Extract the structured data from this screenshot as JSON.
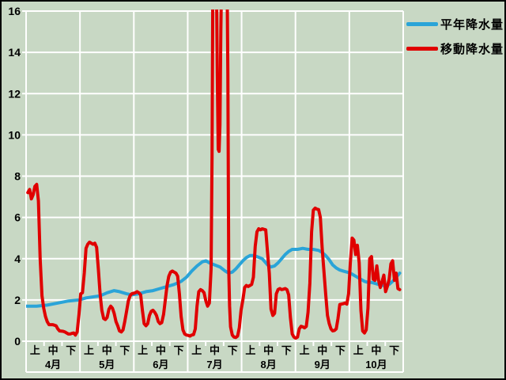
{
  "legend": {
    "series1": "平年降水量",
    "series2": "移動降水量"
  },
  "colors": {
    "background": "#c8d8c4",
    "grid": "#ffffff",
    "normal_line": "#2aa4d8",
    "moving_line": "#e00000",
    "text": "#000000",
    "border": "#000000"
  },
  "chart_data": {
    "type": "line",
    "title": "",
    "grid": true,
    "legend_position": "top-right",
    "x_axis": {
      "months": [
        "4月",
        "5月",
        "6月",
        "7月",
        "8月",
        "9月",
        "10月"
      ],
      "periods": [
        "上",
        "中",
        "下"
      ],
      "x_domain_days": [
        0,
        214
      ]
    },
    "y_axis": {
      "ticks": [
        0,
        2,
        4,
        6,
        8,
        10,
        12,
        14,
        16
      ],
      "range": [
        0,
        16
      ]
    },
    "clip_max": 16,
    "series": [
      {
        "name": "平年降水量",
        "color": "#2aa4d8",
        "points": [
          [
            0,
            1.7
          ],
          [
            6,
            1.7
          ],
          [
            12,
            1.75
          ],
          [
            18,
            1.85
          ],
          [
            24,
            1.95
          ],
          [
            30,
            2.0
          ],
          [
            34,
            2.1
          ],
          [
            38,
            2.15
          ],
          [
            42,
            2.2
          ],
          [
            46,
            2.35
          ],
          [
            50,
            2.45
          ],
          [
            53,
            2.4
          ],
          [
            57,
            2.3
          ],
          [
            60,
            2.25
          ],
          [
            64,
            2.3
          ],
          [
            68,
            2.4
          ],
          [
            72,
            2.45
          ],
          [
            76,
            2.55
          ],
          [
            80,
            2.65
          ],
          [
            84,
            2.75
          ],
          [
            88,
            2.9
          ],
          [
            91,
            3.1
          ],
          [
            94,
            3.4
          ],
          [
            97,
            3.65
          ],
          [
            100,
            3.85
          ],
          [
            102,
            3.9
          ],
          [
            104,
            3.8
          ],
          [
            107,
            3.7
          ],
          [
            110,
            3.6
          ],
          [
            113,
            3.4
          ],
          [
            115,
            3.3
          ],
          [
            117,
            3.35
          ],
          [
            119,
            3.5
          ],
          [
            121,
            3.7
          ],
          [
            123,
            3.9
          ],
          [
            125,
            4.05
          ],
          [
            127,
            4.15
          ],
          [
            129,
            4.15
          ],
          [
            131,
            4.1
          ],
          [
            134,
            4.0
          ],
          [
            137,
            3.7
          ],
          [
            139,
            3.6
          ],
          [
            141,
            3.65
          ],
          [
            143,
            3.8
          ],
          [
            145,
            4.0
          ],
          [
            147,
            4.2
          ],
          [
            149,
            4.35
          ],
          [
            151,
            4.45
          ],
          [
            154,
            4.45
          ],
          [
            157,
            4.5
          ],
          [
            160,
            4.45
          ],
          [
            163,
            4.45
          ],
          [
            166,
            4.4
          ],
          [
            168,
            4.3
          ],
          [
            170,
            4.15
          ],
          [
            172,
            3.95
          ],
          [
            174,
            3.7
          ],
          [
            176,
            3.55
          ],
          [
            178,
            3.45
          ],
          [
            180,
            3.4
          ],
          [
            182,
            3.35
          ],
          [
            184,
            3.3
          ],
          [
            186,
            3.2
          ],
          [
            188,
            3.1
          ],
          [
            190,
            3.0
          ],
          [
            192,
            2.9
          ],
          [
            194,
            2.85
          ],
          [
            196,
            2.85
          ],
          [
            198,
            2.8
          ],
          [
            200,
            2.75
          ],
          [
            202,
            2.7
          ],
          [
            204,
            2.7
          ],
          [
            206,
            2.75
          ],
          [
            208,
            2.9
          ],
          [
            210,
            3.1
          ],
          [
            212,
            3.3
          ]
        ]
      },
      {
        "name": "移動降水量",
        "color": "#e00000",
        "points": [
          [
            1,
            7.2
          ],
          [
            2,
            7.35
          ],
          [
            3,
            6.9
          ],
          [
            4,
            7.1
          ],
          [
            5,
            7.5
          ],
          [
            6,
            7.6
          ],
          [
            7,
            6.8
          ],
          [
            8,
            4.0
          ],
          [
            9,
            2.2
          ],
          [
            10,
            1.6
          ],
          [
            11,
            1.2
          ],
          [
            12,
            0.95
          ],
          [
            13,
            0.8
          ],
          [
            15,
            0.8
          ],
          [
            16,
            0.78
          ],
          [
            17,
            0.75
          ],
          [
            18,
            0.6
          ],
          [
            19,
            0.5
          ],
          [
            21,
            0.48
          ],
          [
            22,
            0.45
          ],
          [
            23,
            0.4
          ],
          [
            24,
            0.35
          ],
          [
            25,
            0.35
          ],
          [
            26,
            0.38
          ],
          [
            27,
            0.4
          ],
          [
            28,
            0.3
          ],
          [
            29,
            0.45
          ],
          [
            30,
            1.3
          ],
          [
            31,
            2.3
          ],
          [
            32,
            2.35
          ],
          [
            33,
            3.3
          ],
          [
            34,
            4.5
          ],
          [
            35,
            4.7
          ],
          [
            36,
            4.8
          ],
          [
            37,
            4.75
          ],
          [
            38,
            4.7
          ],
          [
            39,
            4.75
          ],
          [
            40,
            4.55
          ],
          [
            41,
            3.5
          ],
          [
            42,
            2.3
          ],
          [
            43,
            1.5
          ],
          [
            44,
            1.1
          ],
          [
            45,
            1.05
          ],
          [
            46,
            1.15
          ],
          [
            47,
            1.55
          ],
          [
            48,
            1.7
          ],
          [
            49,
            1.6
          ],
          [
            50,
            1.35
          ],
          [
            51,
            0.95
          ],
          [
            52,
            0.75
          ],
          [
            53,
            0.5
          ],
          [
            54,
            0.45
          ],
          [
            55,
            0.55
          ],
          [
            56,
            0.95
          ],
          [
            57,
            1.45
          ],
          [
            58,
            1.95
          ],
          [
            59,
            2.2
          ],
          [
            60,
            2.3
          ],
          [
            62,
            2.35
          ],
          [
            63,
            2.4
          ],
          [
            64,
            2.35
          ],
          [
            65,
            2.25
          ],
          [
            66,
            1.5
          ],
          [
            67,
            0.85
          ],
          [
            68,
            0.75
          ],
          [
            69,
            0.85
          ],
          [
            70,
            1.25
          ],
          [
            71,
            1.45
          ],
          [
            72,
            1.5
          ],
          [
            73,
            1.4
          ],
          [
            74,
            1.25
          ],
          [
            75,
            0.95
          ],
          [
            76,
            0.85
          ],
          [
            77,
            0.9
          ],
          [
            78,
            1.3
          ],
          [
            79,
            2.0
          ],
          [
            80,
            2.7
          ],
          [
            81,
            3.15
          ],
          [
            82,
            3.35
          ],
          [
            83,
            3.4
          ],
          [
            84,
            3.35
          ],
          [
            85,
            3.3
          ],
          [
            86,
            3.15
          ],
          [
            87,
            2.3
          ],
          [
            88,
            1.2
          ],
          [
            89,
            0.55
          ],
          [
            90,
            0.35
          ],
          [
            91,
            0.3
          ],
          [
            92,
            0.28
          ],
          [
            93,
            0.25
          ],
          [
            94,
            0.3
          ],
          [
            95,
            0.32
          ],
          [
            96,
            0.6
          ],
          [
            97,
            1.7
          ],
          [
            98,
            2.4
          ],
          [
            99,
            2.5
          ],
          [
            100,
            2.45
          ],
          [
            101,
            2.35
          ],
          [
            102,
            1.95
          ],
          [
            103,
            1.7
          ],
          [
            104,
            1.85
          ],
          [
            105,
            3.5
          ],
          [
            105.5,
            9.0
          ],
          [
            106,
            18
          ],
          [
            107,
            18
          ],
          [
            108,
            18
          ],
          [
            108.5,
            13
          ],
          [
            109,
            9.3
          ],
          [
            109.5,
            9.2
          ],
          [
            110,
            10.5
          ],
          [
            110.5,
            15
          ],
          [
            111,
            18
          ],
          [
            112,
            18
          ],
          [
            113,
            18
          ],
          [
            114,
            18
          ],
          [
            114.5,
            13
          ],
          [
            115,
            3.5
          ],
          [
            115.5,
            1.7
          ],
          [
            116,
            0.7
          ],
          [
            117,
            0.3
          ],
          [
            118,
            0.2
          ],
          [
            119,
            0.18
          ],
          [
            120,
            0.25
          ],
          [
            121,
            0.65
          ],
          [
            122,
            1.5
          ],
          [
            123,
            2.0
          ],
          [
            124,
            2.6
          ],
          [
            125,
            2.7
          ],
          [
            126,
            2.65
          ],
          [
            127,
            2.7
          ],
          [
            128,
            2.75
          ],
          [
            129,
            3.1
          ],
          [
            130,
            4.6
          ],
          [
            131,
            5.3
          ],
          [
            132,
            5.45
          ],
          [
            133,
            5.4
          ],
          [
            134,
            5.45
          ],
          [
            135,
            5.42
          ],
          [
            136,
            5.4
          ],
          [
            137,
            4.3
          ],
          [
            138,
            3.3
          ],
          [
            139,
            1.55
          ],
          [
            140,
            1.25
          ],
          [
            141,
            1.35
          ],
          [
            142,
            2.3
          ],
          [
            143,
            2.5
          ],
          [
            144,
            2.55
          ],
          [
            145,
            2.5
          ],
          [
            146,
            2.52
          ],
          [
            147,
            2.55
          ],
          [
            148,
            2.5
          ],
          [
            149,
            2.25
          ],
          [
            150,
            1.15
          ],
          [
            151,
            0.35
          ],
          [
            152,
            0.2
          ],
          [
            153,
            0.15
          ],
          [
            154,
            0.2
          ],
          [
            155,
            0.6
          ],
          [
            156,
            0.72
          ],
          [
            157,
            0.7
          ],
          [
            158,
            0.65
          ],
          [
            159,
            0.72
          ],
          [
            160,
            1.4
          ],
          [
            161,
            2.8
          ],
          [
            162,
            5.3
          ],
          [
            163,
            6.35
          ],
          [
            164,
            6.45
          ],
          [
            165,
            6.4
          ],
          [
            166,
            6.38
          ],
          [
            167,
            6.0
          ],
          [
            168,
            4.5
          ],
          [
            169,
            3.4
          ],
          [
            170,
            2.3
          ],
          [
            171,
            1.25
          ],
          [
            172,
            0.85
          ],
          [
            173,
            0.6
          ],
          [
            174,
            0.5
          ],
          [
            175,
            0.52
          ],
          [
            176,
            0.6
          ],
          [
            177,
            1.1
          ],
          [
            178,
            1.78
          ],
          [
            179,
            1.8
          ],
          [
            180,
            1.82
          ],
          [
            181,
            1.85
          ],
          [
            182,
            1.8
          ],
          [
            183,
            2.3
          ],
          [
            184,
            3.8
          ],
          [
            185,
            5.0
          ],
          [
            186,
            4.9
          ],
          [
            187,
            4.2
          ],
          [
            188,
            4.65
          ],
          [
            189,
            3.8
          ],
          [
            190,
            1.5
          ],
          [
            191,
            0.5
          ],
          [
            192,
            0.4
          ],
          [
            193,
            0.55
          ],
          [
            194,
            1.6
          ],
          [
            195,
            4.0
          ],
          [
            196,
            4.1
          ],
          [
            197,
            3.0
          ],
          [
            198,
            2.95
          ],
          [
            199,
            3.65
          ],
          [
            200,
            2.95
          ],
          [
            201,
            2.6
          ],
          [
            202,
            2.9
          ],
          [
            203,
            3.2
          ],
          [
            204,
            2.4
          ],
          [
            205,
            2.65
          ],
          [
            206,
            3.0
          ],
          [
            207,
            3.75
          ],
          [
            208,
            3.9
          ],
          [
            209,
            2.95
          ],
          [
            210,
            3.3
          ],
          [
            211,
            2.55
          ],
          [
            212,
            2.5
          ]
        ]
      }
    ]
  }
}
